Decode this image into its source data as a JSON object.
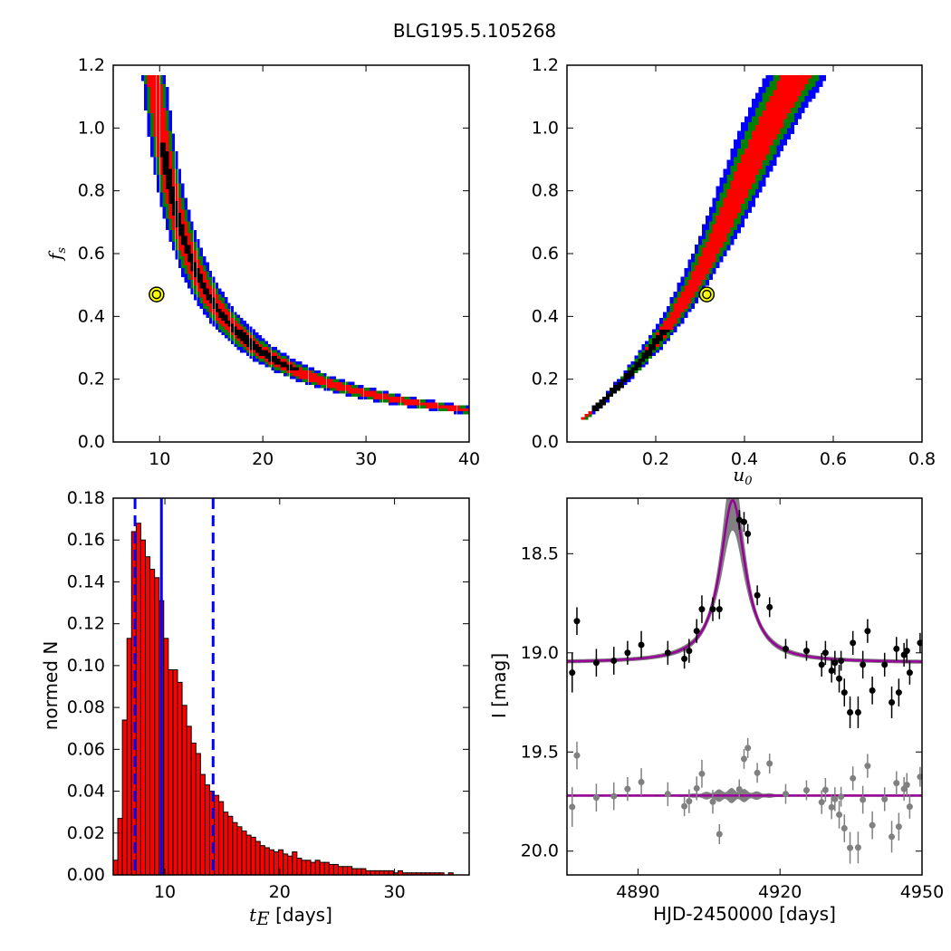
{
  "figure": {
    "title": "BLG195.5.105268"
  },
  "chart_data": [
    {
      "type": "heatmap",
      "panel": "top-left",
      "xlabel": "",
      "ylabel": "f_s",
      "ylabel_main": "f",
      "ylabel_sub": "s",
      "xlim": [
        5.5,
        40
      ],
      "ylim": [
        0,
        1.2
      ],
      "xticks": [
        10,
        20,
        30,
        40
      ],
      "yticks": [
        0.0,
        0.2,
        0.4,
        0.6,
        0.8,
        1.0,
        1.2
      ],
      "ytick_labels": [
        "0.0",
        "0.2",
        "0.4",
        "0.6",
        "0.8",
        "1.0",
        "1.2"
      ],
      "confidence_colors": [
        "#0000ff",
        "#008000",
        "#ff0000",
        "#000000"
      ],
      "curve_A": 4.5,
      "curve_B": 0.0,
      "best_fit": [
        9.7,
        0.47
      ],
      "best_fit_color": "#ffff00"
    },
    {
      "type": "heatmap",
      "panel": "top-right",
      "xlabel": "u_0",
      "xlabel_main": "u",
      "xlabel_sub": "0",
      "ylabel": "",
      "xlim": [
        0,
        0.8
      ],
      "ylim": [
        0,
        1.2
      ],
      "xticks": [
        0.2,
        0.4,
        0.6,
        0.8
      ],
      "xtick_labels": [
        "0.2",
        "0.4",
        "0.6",
        "0.8"
      ],
      "yticks": [
        0.0,
        0.2,
        0.4,
        0.6,
        0.8,
        1.0,
        1.2
      ],
      "ytick_labels": [
        "0.0",
        "0.2",
        "0.4",
        "0.6",
        "0.8",
        "1.0",
        "1.2"
      ],
      "confidence_colors": [
        "#0000ff",
        "#008000",
        "#ff0000",
        "#000000"
      ],
      "best_fit": [
        0.315,
        0.47
      ],
      "best_fit_color": "#ffff00"
    },
    {
      "type": "bar",
      "panel": "bottom-left",
      "xlabel_main": "t",
      "xlabel_sub": "E",
      "xlabel_rest": " [days]",
      "ylabel": "normed N",
      "xlim": [
        5.5,
        36.5
      ],
      "ylim": [
        0,
        0.18
      ],
      "xticks": [
        10,
        20,
        30
      ],
      "yticks": [
        0.0,
        0.02,
        0.04,
        0.06,
        0.08,
        0.1,
        0.12,
        0.14,
        0.16,
        0.18
      ],
      "ytick_labels": [
        "0.00",
        "0.02",
        "0.04",
        "0.06",
        "0.08",
        "0.10",
        "0.12",
        "0.14",
        "0.16",
        "0.18"
      ],
      "bin_start": 5.5,
      "bin_width": 0.4,
      "values": [
        0.007,
        0.027,
        0.074,
        0.113,
        0.164,
        0.168,
        0.16,
        0.152,
        0.146,
        0.142,
        0.131,
        0.113,
        0.098,
        0.098,
        0.092,
        0.081,
        0.071,
        0.063,
        0.058,
        0.048,
        0.043,
        0.04,
        0.038,
        0.035,
        0.03,
        0.028,
        0.025,
        0.023,
        0.021,
        0.019,
        0.018,
        0.016,
        0.014,
        0.013,
        0.012,
        0.011,
        0.012,
        0.01,
        0.009,
        0.011,
        0.008,
        0.007,
        0.007,
        0.006,
        0.007,
        0.006,
        0.006,
        0.005,
        0.005,
        0.004,
        0.004,
        0.004,
        0.003,
        0.003,
        0.003,
        0.002,
        0.002,
        0.002,
        0.002,
        0.002,
        0.002,
        0.001,
        0.002,
        0.001,
        0.001,
        0.001,
        0.001,
        0.001,
        0.001,
        0.001,
        0.001,
        0.001,
        0.0,
        0.001,
        0.0,
        0.0,
        0.0
      ],
      "bar_color": "#ff0000",
      "median": 9.7,
      "lower": 7.4,
      "upper": 14.2,
      "line_color": "#0000ff"
    },
    {
      "type": "scatter",
      "panel": "bottom-right",
      "xlabel": "HJD-2450000 [days]",
      "ylabel": "I [mag]",
      "xlim": [
        4875,
        4950
      ],
      "ylim": [
        20.12,
        18.22
      ],
      "xticks": [
        4890,
        4920,
        4950
      ],
      "yticks": [
        18.5,
        19.0,
        19.5,
        20.0
      ],
      "ytick_labels": [
        "18.5",
        "19.0",
        "19.5",
        "20.0"
      ],
      "model": {
        "baseline": 19.05,
        "amplitude": 0.82,
        "t0": 4910,
        "width": 3.2
      },
      "residual_offset": 19.72,
      "model_color": "#990099",
      "band_color": "#808080",
      "data_color": "#000000",
      "resid_color": "#808080",
      "points": [
        [
          4876.1,
          19.1,
          0.1
        ],
        [
          4877.1,
          18.84,
          0.07
        ],
        [
          4881.2,
          19.05,
          0.07
        ],
        [
          4884.9,
          19.04,
          0.07
        ],
        [
          4887.8,
          19.0,
          0.06
        ],
        [
          4890.7,
          18.96,
          0.07
        ],
        [
          4896.3,
          19.0,
          0.06
        ],
        [
          4899.8,
          19.03,
          0.05
        ],
        [
          4900.8,
          18.99,
          0.06
        ],
        [
          4902.4,
          18.89,
          0.06
        ],
        [
          4903.5,
          18.78,
          0.07
        ],
        [
          4905.8,
          18.78,
          0.06
        ],
        [
          4907.2,
          18.78,
          0.05
        ],
        [
          4911.4,
          18.33,
          0.05
        ],
        [
          4912.4,
          18.34,
          0.05
        ],
        [
          4913.2,
          18.4,
          0.05
        ],
        [
          4915.2,
          18.71,
          0.05
        ],
        [
          4917.8,
          18.77,
          0.05
        ],
        [
          4921.2,
          18.98,
          0.05
        ],
        [
          4925.6,
          18.99,
          0.05
        ],
        [
          4928.8,
          19.06,
          0.06
        ],
        [
          4929.6,
          19.0,
          0.06
        ],
        [
          4930.9,
          19.09,
          0.06
        ],
        [
          4931.6,
          19.05,
          0.06
        ],
        [
          4932.5,
          19.13,
          0.07
        ],
        [
          4932.9,
          19.04,
          0.05
        ],
        [
          4933.6,
          19.2,
          0.07
        ],
        [
          4934.8,
          19.3,
          0.08
        ],
        [
          4935.4,
          18.95,
          0.06
        ],
        [
          4936.5,
          19.3,
          0.08
        ],
        [
          4937.5,
          19.06,
          0.07
        ],
        [
          4938.5,
          18.89,
          0.06
        ],
        [
          4939.5,
          19.19,
          0.07
        ],
        [
          4942.1,
          19.06,
          0.06
        ],
        [
          4943.6,
          19.25,
          0.08
        ],
        [
          4944.6,
          18.98,
          0.06
        ],
        [
          4945.1,
          19.2,
          0.07
        ],
        [
          4946.2,
          19.01,
          0.06
        ],
        [
          4946.8,
          18.99,
          0.06
        ],
        [
          4947.4,
          19.1,
          0.06
        ],
        [
          4949.6,
          18.95,
          0.05
        ]
      ]
    }
  ]
}
